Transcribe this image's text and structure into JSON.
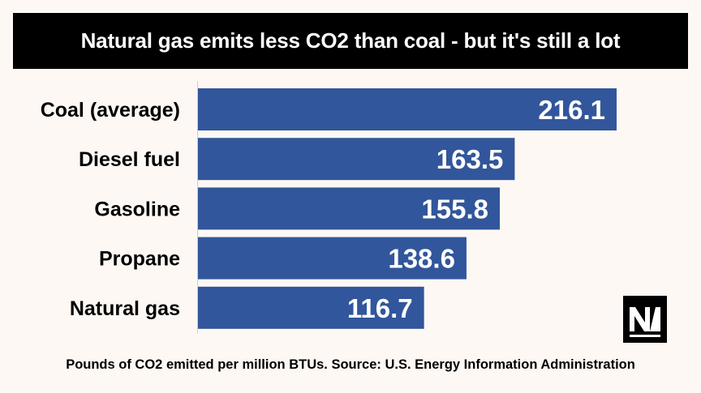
{
  "title": "Natural gas emits less CO2 than coal - but it's still a lot",
  "footer": "Pounds of CO2 emitted per million BTUs. Source: U.S. Energy Information Administration",
  "colors": {
    "background": "#fdf8f4",
    "bar": "#32569b",
    "title_bar": "#000000"
  },
  "logo": {
    "icon": "nm-logo-icon",
    "text": "NM"
  },
  "chart_data": {
    "type": "bar",
    "orientation": "horizontal",
    "categories": [
      "Coal (average)",
      "Diesel fuel",
      "Gasoline",
      "Propane",
      "Natural gas"
    ],
    "values": [
      216.1,
      163.5,
      155.8,
      138.6,
      116.7
    ],
    "value_labels": [
      "216.1",
      "163.5",
      "155.8",
      "138.6",
      "116.7"
    ],
    "title": "Natural gas emits less CO2 than coal - but it's still a lot",
    "xlabel": "",
    "ylabel": "",
    "xlim": [
      0,
      216.1
    ],
    "grid": false,
    "legend": "none"
  }
}
